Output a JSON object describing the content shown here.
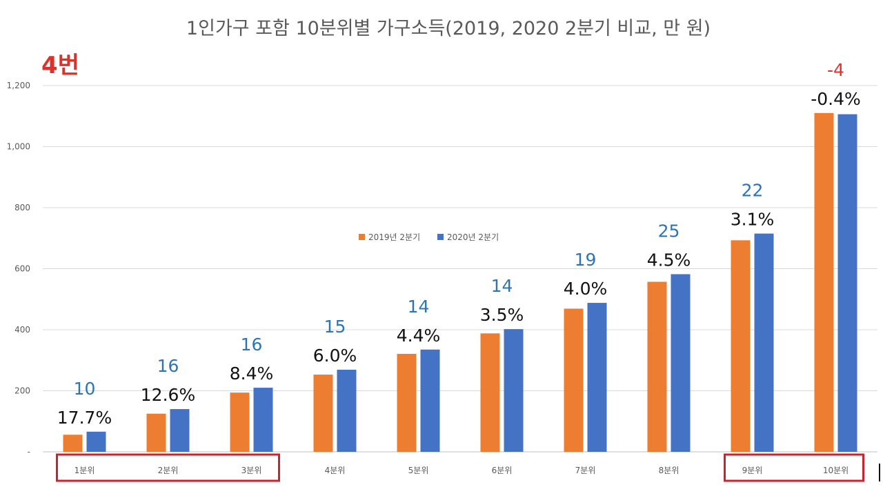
{
  "badge": "4번",
  "colors": {
    "series_2019": "#ed7d31",
    "series_2020": "#4472c4",
    "diff_positive": "#2e74b5",
    "diff_negative": "#e0302a",
    "highlight_box": "#d0212b"
  },
  "chart_data": {
    "type": "bar",
    "title": "1인가구 포함 10분위별 가구소득(2019, 2020 2분기 비교, 만 원)",
    "categories": [
      "1분위",
      "2분위",
      "3분위",
      "4분위",
      "5분위",
      "6분위",
      "7분위",
      "8분위",
      "9분위",
      "10분위"
    ],
    "series": [
      {
        "name": "2019년 2분기",
        "values": [
          56,
          125,
          194,
          253,
          321,
          388,
          469,
          557,
          693,
          1110
        ]
      },
      {
        "name": "2020년 2분기",
        "values": [
          66,
          140,
          210,
          269,
          335,
          402,
          488,
          582,
          715,
          1106
        ]
      }
    ],
    "diff_labels": [
      "10",
      "16",
      "16",
      "15",
      "14",
      "14",
      "19",
      "25",
      "22",
      "-4"
    ],
    "pct_labels": [
      "17.7%",
      "12.6%",
      "8.4%",
      "6.0%",
      "4.4%",
      "3.5%",
      "4.0%",
      "4.5%",
      "3.1%",
      "-0.4%"
    ],
    "yticks": [
      "-",
      "200",
      "400",
      "600",
      "800",
      "1,000",
      "1,200"
    ],
    "ylim": [
      0,
      1200
    ],
    "grid": true,
    "legend_position": "top-center",
    "highlighted_groups": [
      [
        "1분위",
        "2분위",
        "3분위"
      ],
      [
        "9분위",
        "10분위"
      ]
    ]
  }
}
